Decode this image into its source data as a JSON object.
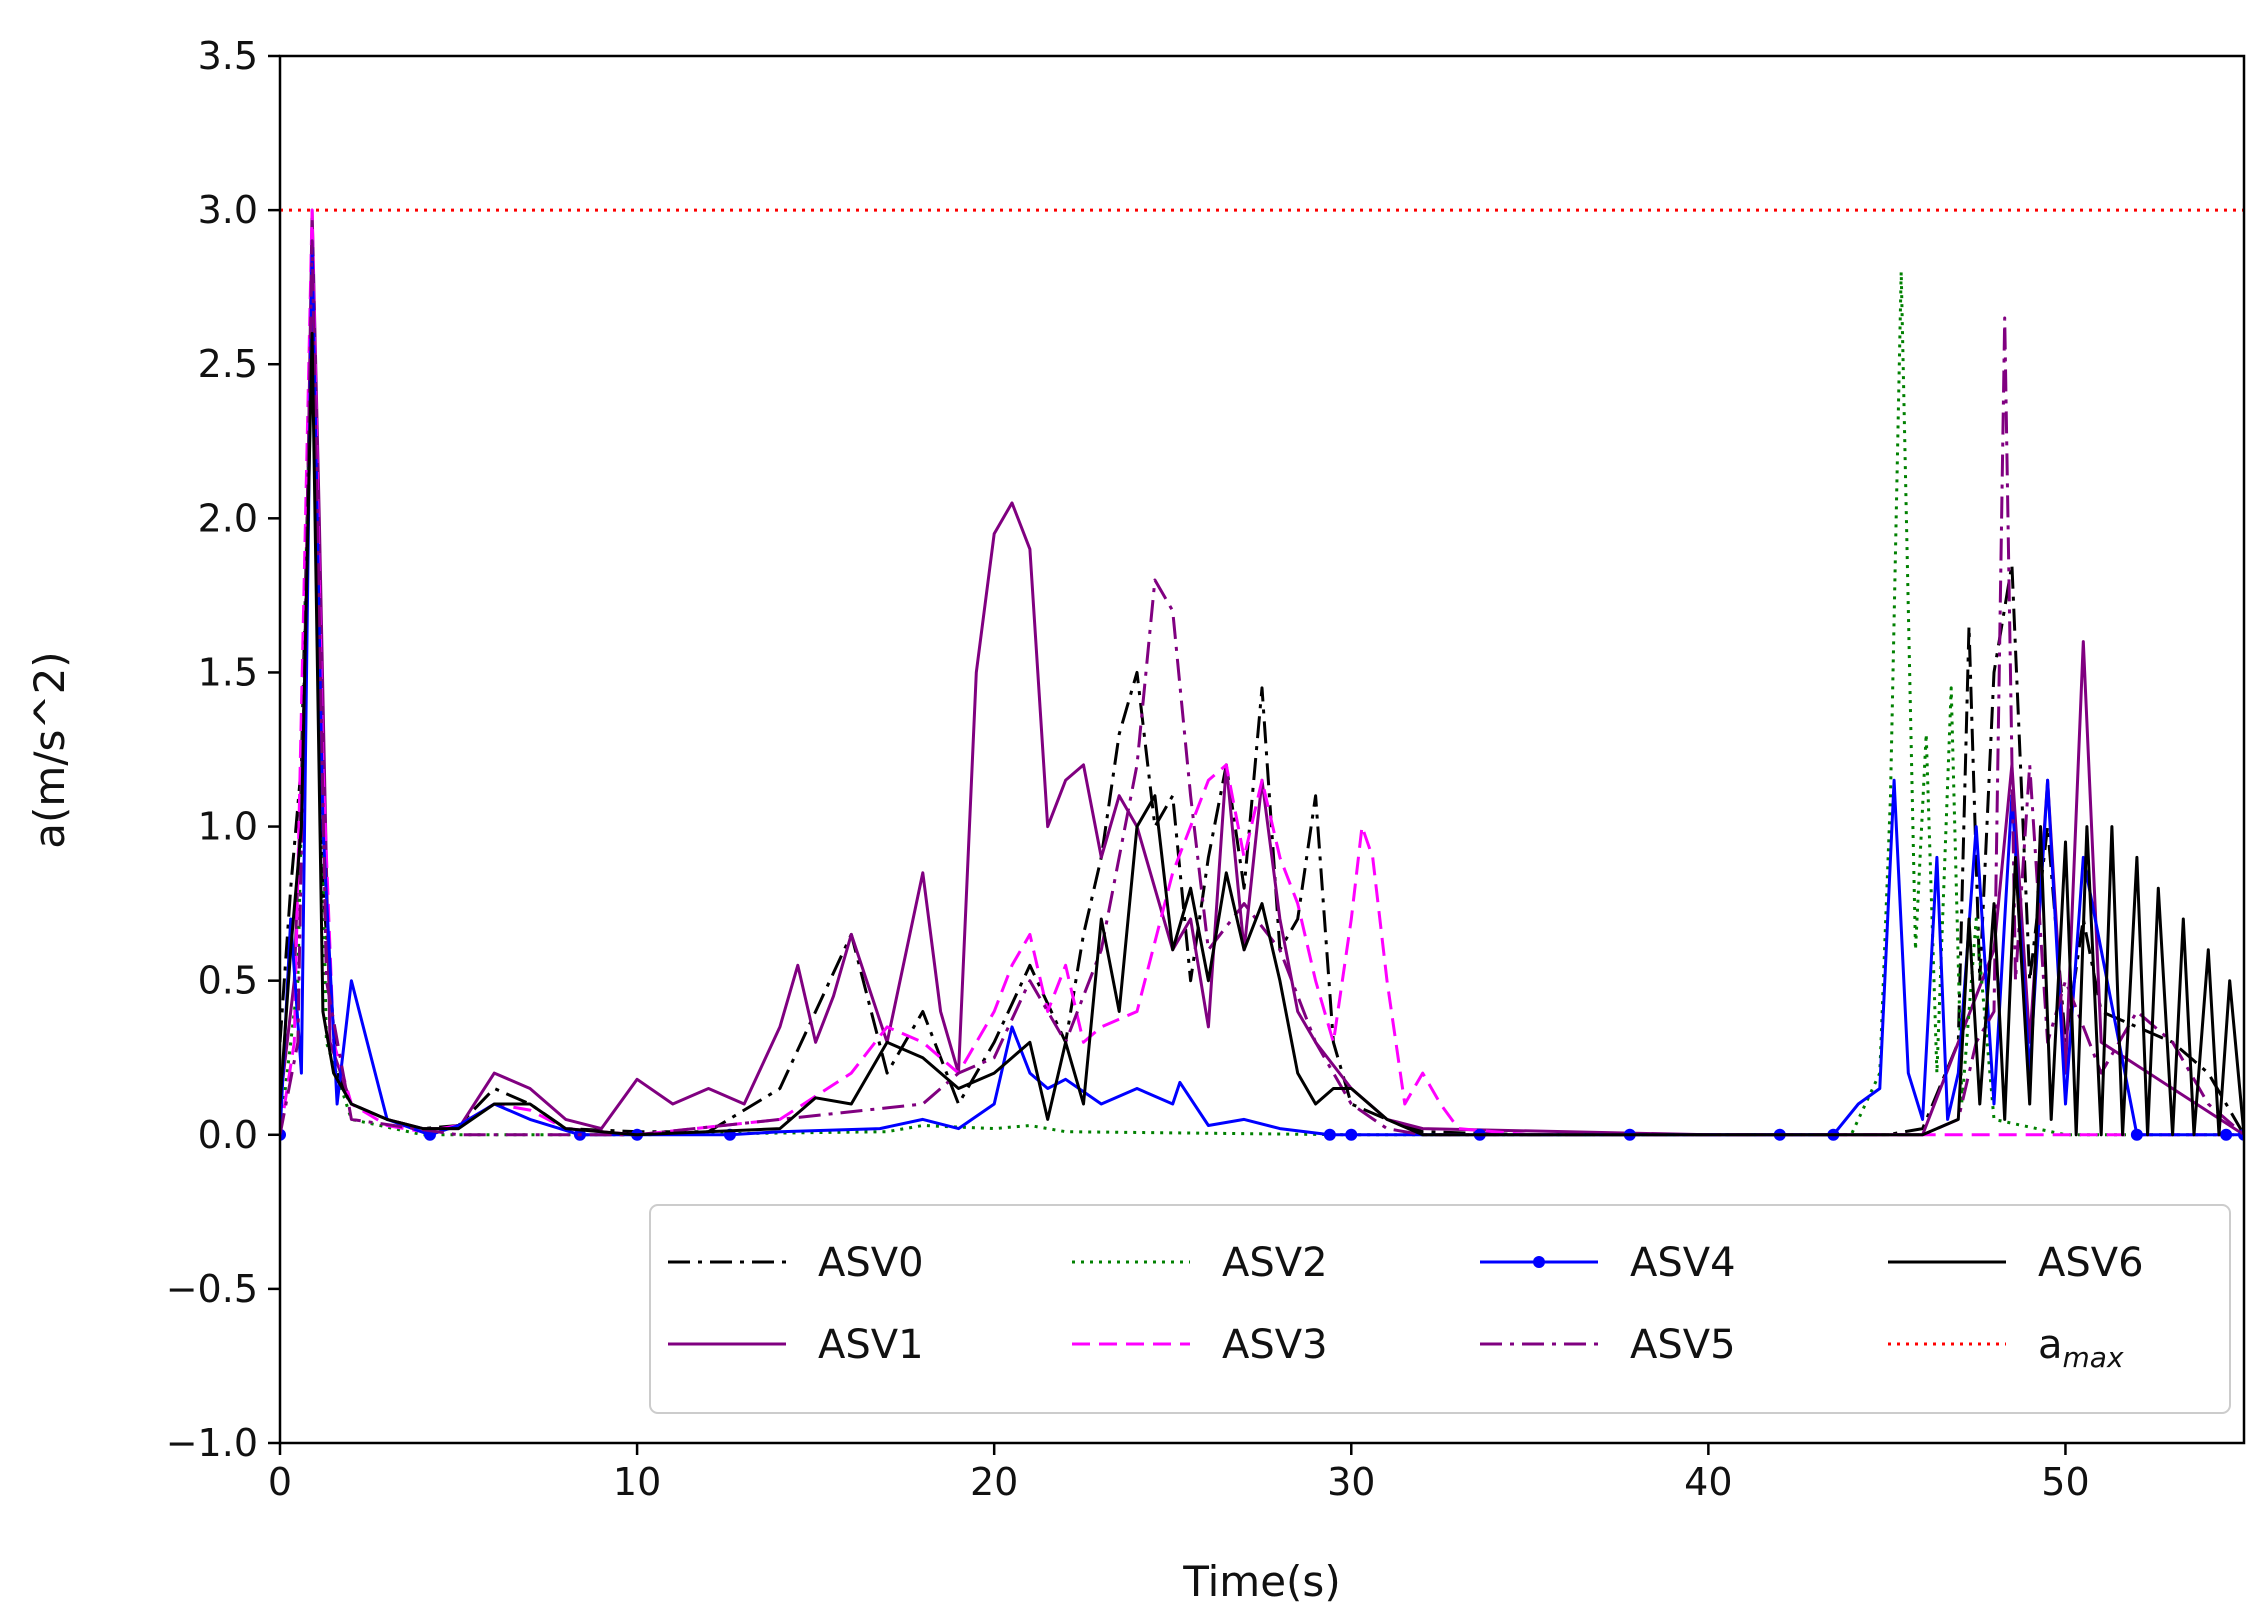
{
  "chart_data": {
    "type": "line",
    "title": "",
    "xlabel": "Time(s)",
    "ylabel": "a(m/s^2)",
    "xlim": [
      0,
      55
    ],
    "ylim": [
      -1.0,
      3.5
    ],
    "xticks": [
      0,
      10,
      20,
      30,
      40,
      50
    ],
    "yticks": [
      -1.0,
      -0.5,
      0.0,
      0.5,
      1.0,
      1.5,
      2.0,
      2.5,
      3.0,
      3.5
    ],
    "xtick_labels": [
      "0",
      "10",
      "20",
      "30",
      "40",
      "50"
    ],
    "ytick_labels": [
      "−1.0",
      "−0.5",
      "0.0",
      "0.5",
      "1.0",
      "1.5",
      "2.0",
      "2.5",
      "3.0",
      "3.5"
    ],
    "grid": false,
    "legend_position": "lower-right",
    "reference_line": {
      "name": "a_max",
      "label_base": "a",
      "label_sub": "max",
      "value": 3.0,
      "color": "#ff0000",
      "style": "dotted"
    },
    "series": [
      {
        "name": "ASV0",
        "color": "#000000",
        "style": "dashdot",
        "markers": false,
        "x": [
          0,
          0.3,
          0.6,
          0.9,
          1.2,
          1.6,
          2,
          3,
          4,
          5,
          6,
          7,
          8,
          10,
          12,
          14,
          15,
          16,
          17,
          18,
          19,
          20,
          21,
          22,
          22.5,
          23,
          23.5,
          24,
          24.5,
          25,
          25.5,
          26,
          26.5,
          27,
          27.5,
          28,
          28.5,
          29,
          29.5,
          30,
          31,
          32,
          35,
          40,
          45,
          46,
          47,
          47.3,
          47.6,
          48,
          48.5,
          49,
          49.5,
          50,
          50.5,
          51,
          52,
          53,
          54,
          55
        ],
        "y": [
          0.3,
          0.8,
          1.2,
          2.7,
          0.8,
          0.2,
          0.1,
          0.05,
          0.02,
          0.03,
          0.15,
          0.1,
          0.02,
          0.01,
          0.01,
          0.15,
          0.4,
          0.65,
          0.2,
          0.4,
          0.1,
          0.3,
          0.55,
          0.3,
          0.65,
          0.9,
          1.3,
          1.5,
          1.0,
          1.1,
          0.5,
          0.9,
          1.2,
          0.8,
          1.45,
          0.6,
          0.7,
          1.1,
          0.3,
          0.1,
          0.05,
          0.01,
          0.0,
          0.0,
          0.0,
          0.02,
          0.3,
          1.65,
          0.5,
          1.5,
          1.85,
          0.5,
          1.0,
          0.3,
          0.7,
          0.4,
          0.35,
          0.3,
          0.2,
          0.0
        ]
      },
      {
        "name": "ASV1",
        "color": "#800080",
        "style": "solid",
        "markers": false,
        "x": [
          0,
          0.4,
          0.7,
          0.9,
          1.1,
          1.4,
          2,
          3,
          4,
          5,
          6,
          7,
          8,
          9,
          10,
          11,
          12,
          13,
          14,
          14.5,
          15,
          15.5,
          16,
          17,
          18,
          18.5,
          19,
          19.5,
          20,
          20.5,
          21,
          21.5,
          22,
          22.5,
          23,
          23.5,
          24,
          25,
          25.5,
          26,
          26.5,
          27,
          27.5,
          28,
          28.5,
          29,
          30,
          31,
          32,
          40,
          46,
          47,
          48,
          48.5,
          49,
          49.5,
          50,
          50.5,
          51,
          55
        ],
        "y": [
          0.1,
          0.5,
          1.5,
          3.0,
          2.0,
          0.3,
          0.1,
          0.05,
          0.02,
          0.02,
          0.2,
          0.15,
          0.05,
          0.02,
          0.18,
          0.1,
          0.15,
          0.1,
          0.35,
          0.55,
          0.3,
          0.45,
          0.65,
          0.3,
          0.85,
          0.4,
          0.2,
          1.5,
          1.95,
          2.05,
          1.9,
          1.0,
          1.15,
          1.2,
          0.9,
          1.1,
          1.0,
          0.6,
          0.7,
          0.35,
          1.2,
          0.6,
          1.15,
          0.7,
          0.4,
          0.3,
          0.15,
          0.05,
          0.02,
          0.0,
          0.0,
          0.3,
          0.6,
          1.2,
          0.3,
          1.15,
          0.2,
          1.6,
          0.3,
          0.0
        ]
      },
      {
        "name": "ASV2",
        "color": "#008000",
        "style": "dotted",
        "markers": false,
        "x": [
          0,
          0.5,
          0.9,
          1.3,
          2,
          4,
          10,
          17,
          18,
          20,
          21,
          22,
          30,
          40,
          44,
          44.8,
          45.1,
          45.4,
          45.8,
          46.1,
          46.4,
          46.8,
          47.1,
          47.5,
          48,
          50,
          55
        ],
        "y": [
          0.0,
          0.5,
          2.7,
          0.3,
          0.05,
          0.0,
          0.0,
          0.01,
          0.03,
          0.02,
          0.03,
          0.01,
          0.0,
          0.0,
          0.0,
          0.2,
          1.1,
          2.8,
          0.6,
          1.3,
          0.2,
          1.45,
          0.1,
          0.7,
          0.05,
          0.0,
          0.0
        ]
      },
      {
        "name": "ASV3",
        "color": "#ff00ff",
        "style": "dashed",
        "markers": false,
        "x": [
          0,
          0.4,
          0.9,
          1.2,
          1.5,
          2,
          3,
          4,
          5,
          6,
          7,
          8,
          10,
          14,
          16,
          17,
          18,
          19,
          20,
          20.5,
          21,
          21.5,
          22,
          22.5,
          23,
          24,
          25,
          26,
          26.5,
          27,
          27.5,
          28,
          28.5,
          29,
          29.5,
          30,
          30.3,
          30.6,
          31,
          31.5,
          32,
          32.5,
          33,
          35,
          55
        ],
        "y": [
          0.0,
          0.3,
          3.0,
          1.2,
          0.3,
          0.1,
          0.03,
          0.01,
          0.03,
          0.1,
          0.08,
          0.02,
          0.0,
          0.05,
          0.2,
          0.35,
          0.3,
          0.2,
          0.4,
          0.55,
          0.65,
          0.4,
          0.55,
          0.3,
          0.35,
          0.4,
          0.85,
          1.15,
          1.2,
          0.9,
          1.15,
          0.9,
          0.75,
          0.5,
          0.3,
          0.7,
          1.0,
          0.9,
          0.5,
          0.1,
          0.2,
          0.1,
          0.02,
          0.0,
          0.0
        ]
      },
      {
        "name": "ASV4",
        "color": "#0000ff",
        "style": "solid",
        "markers": true,
        "x": [
          0,
          0.3,
          0.6,
          0.9,
          1.2,
          1.6,
          2,
          3,
          4.2,
          5,
          6,
          7,
          8.4,
          10,
          12.6,
          14,
          16.8,
          18,
          19,
          20,
          20.5,
          21,
          21.5,
          22,
          23,
          24,
          25,
          25.2,
          26,
          27,
          28,
          29.4,
          30,
          33.6,
          37.8,
          42,
          43.5,
          44.2,
          44.8,
          45.2,
          45.6,
          46,
          46.4,
          46.7,
          47,
          47.5,
          48,
          48.5,
          49,
          49.5,
          50,
          50.5,
          52,
          54.5,
          55
        ],
        "y": [
          0.0,
          0.7,
          0.2,
          2.9,
          1.0,
          0.1,
          0.5,
          0.05,
          0.0,
          0.03,
          0.1,
          0.05,
          0.0,
          0.0,
          0.0,
          0.01,
          0.02,
          0.05,
          0.02,
          0.1,
          0.35,
          0.2,
          0.15,
          0.18,
          0.1,
          0.15,
          0.1,
          0.17,
          0.03,
          0.05,
          0.02,
          0.0,
          0.0,
          0.0,
          0.0,
          0.0,
          0.0,
          0.1,
          0.15,
          1.15,
          0.2,
          0.05,
          0.9,
          0.05,
          0.2,
          1.0,
          0.1,
          1.1,
          0.2,
          1.15,
          0.1,
          0.9,
          0.0,
          0.0,
          0.0
        ]
      },
      {
        "name": "ASV5",
        "color": "#800080",
        "style": "dashdot",
        "markers": false,
        "x": [
          0,
          0.5,
          0.9,
          1.3,
          2,
          5,
          10,
          18,
          19,
          20,
          21,
          22,
          23,
          24,
          24.5,
          25,
          25.5,
          26,
          27,
          28,
          29,
          30,
          31,
          32,
          40,
          46,
          47,
          47.5,
          48,
          48.3,
          48.6,
          49,
          49.5,
          50,
          51,
          52,
          53,
          54,
          55
        ],
        "y": [
          0.0,
          0.3,
          2.9,
          0.5,
          0.05,
          0.0,
          0.0,
          0.1,
          0.2,
          0.25,
          0.5,
          0.3,
          0.6,
          1.2,
          1.8,
          1.7,
          1.1,
          0.6,
          0.75,
          0.6,
          0.3,
          0.1,
          0.02,
          0.0,
          0.0,
          0.0,
          0.05,
          0.3,
          0.4,
          2.65,
          0.5,
          1.2,
          0.3,
          0.5,
          0.2,
          0.4,
          0.3,
          0.1,
          0.0
        ]
      },
      {
        "name": "ASV6",
        "color": "#000000",
        "style": "solid",
        "markers": false,
        "x": [
          0,
          0.3,
          0.6,
          0.9,
          1.2,
          1.5,
          2,
          3,
          4,
          5,
          6,
          7,
          8,
          10,
          14,
          15,
          16,
          17,
          18,
          19,
          20,
          20.5,
          21,
          21.5,
          22,
          22.5,
          23,
          23.5,
          24,
          24.5,
          25,
          25.5,
          26,
          26.5,
          27,
          27.5,
          28,
          28.5,
          29,
          29.5,
          30,
          31,
          32,
          40,
          46,
          47,
          47.3,
          47.6,
          48,
          48.3,
          48.6,
          49,
          49.3,
          49.6,
          50,
          50.3,
          50.6,
          51,
          51.3,
          51.6,
          52,
          52.3,
          52.6,
          53,
          53.3,
          53.6,
          54,
          54.3,
          54.6,
          55
        ],
        "y": [
          0.1,
          0.6,
          1.0,
          2.6,
          0.4,
          0.2,
          0.1,
          0.05,
          0.02,
          0.02,
          0.1,
          0.1,
          0.02,
          0.0,
          0.02,
          0.12,
          0.1,
          0.3,
          0.25,
          0.15,
          0.2,
          0.25,
          0.3,
          0.05,
          0.3,
          0.1,
          0.7,
          0.4,
          1.0,
          1.1,
          0.6,
          0.8,
          0.5,
          0.85,
          0.6,
          0.75,
          0.5,
          0.2,
          0.1,
          0.15,
          0.15,
          0.05,
          0.0,
          0.0,
          0.0,
          0.05,
          0.7,
          0.1,
          0.75,
          0.05,
          0.9,
          0.1,
          1.0,
          0.05,
          0.95,
          0.0,
          1.0,
          0.0,
          1.0,
          0.0,
          0.9,
          0.0,
          0.8,
          0.0,
          0.7,
          0.0,
          0.6,
          0.0,
          0.5,
          0.0
        ]
      }
    ]
  }
}
